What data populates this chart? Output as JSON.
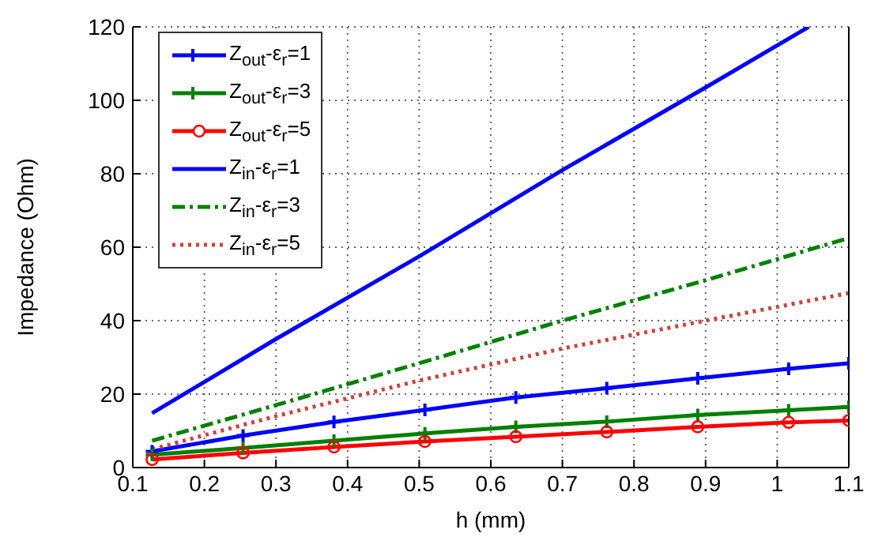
{
  "chart_data": {
    "type": "line",
    "xlabel": "h (mm)",
    "ylabel": "Impedance (Ohm)",
    "xlim": [
      0.1,
      1.1
    ],
    "xticks": [
      0.1,
      0.2,
      0.3,
      0.4,
      0.5,
      0.6,
      0.7,
      0.8,
      0.9,
      1,
      1.1
    ],
    "ylim": [
      0,
      120
    ],
    "yticks": [
      0,
      20,
      40,
      60,
      80,
      100,
      120
    ],
    "grid": true,
    "legend": "top left",
    "series": [
      {
        "name": "Z$_{out}$-ε$_{r}$=1",
        "color": "#0000ff",
        "marker": "cross",
        "line_style": "solid",
        "x": [
          0.127,
          0.254,
          0.381,
          0.508,
          0.635,
          0.762,
          0.889,
          1.016,
          1.1
        ],
        "values": [
          4.4,
          8.7,
          12.4,
          15.7,
          19.1,
          21.6,
          24.3,
          26.9,
          28.4
        ]
      },
      {
        "name": "Z$_{out}$-ε$_{r}$=3",
        "color": "#008000",
        "marker": "cross",
        "line_style": "solid",
        "x": [
          0.127,
          0.254,
          0.381,
          0.508,
          0.635,
          0.762,
          0.889,
          1.016,
          1.1
        ],
        "values": [
          3.5,
          5.3,
          7.3,
          9.3,
          11.1,
          12.5,
          14.3,
          15.6,
          16.5
        ]
      },
      {
        "name": "Z$_{out}$-ε$_{r}$=5",
        "color": "#ff0000",
        "marker": "circle",
        "line_style": "solid",
        "x": [
          0.127,
          0.254,
          0.381,
          0.508,
          0.635,
          0.762,
          0.889,
          1.016,
          1.1
        ],
        "values": [
          2.2,
          4.0,
          5.6,
          7.1,
          8.4,
          9.7,
          11.1,
          12.3,
          12.8
        ]
      },
      {
        "name": "Z$_{in}$-ε$_{r}$=1",
        "color": "#0000ff",
        "marker": "none",
        "line_style": "solid",
        "x": [
          0.127,
          0.3,
          0.5,
          0.7,
          0.9,
          1.044
        ],
        "values": [
          14.8,
          35,
          57.5,
          81,
          103.5,
          120
        ]
      },
      {
        "name": "Z$_{in}$-ε$_{r}$=3",
        "color": "#008000",
        "marker": "none",
        "line_style": "dashed",
        "x": [
          0.127,
          0.3,
          0.5,
          0.7,
          0.9,
          1.1
        ],
        "values": [
          7.3,
          17,
          28.4,
          40,
          51,
          62.5
        ]
      },
      {
        "name": "Z$_{in}$-ε$_{r}$=5",
        "color": "#d04040",
        "marker": "none",
        "line_style": "dotted",
        "x": [
          0.127,
          0.3,
          0.5,
          0.7,
          0.9,
          1.1
        ],
        "values": [
          5,
          14,
          23.7,
          32.4,
          40,
          47.5
        ]
      }
    ]
  }
}
